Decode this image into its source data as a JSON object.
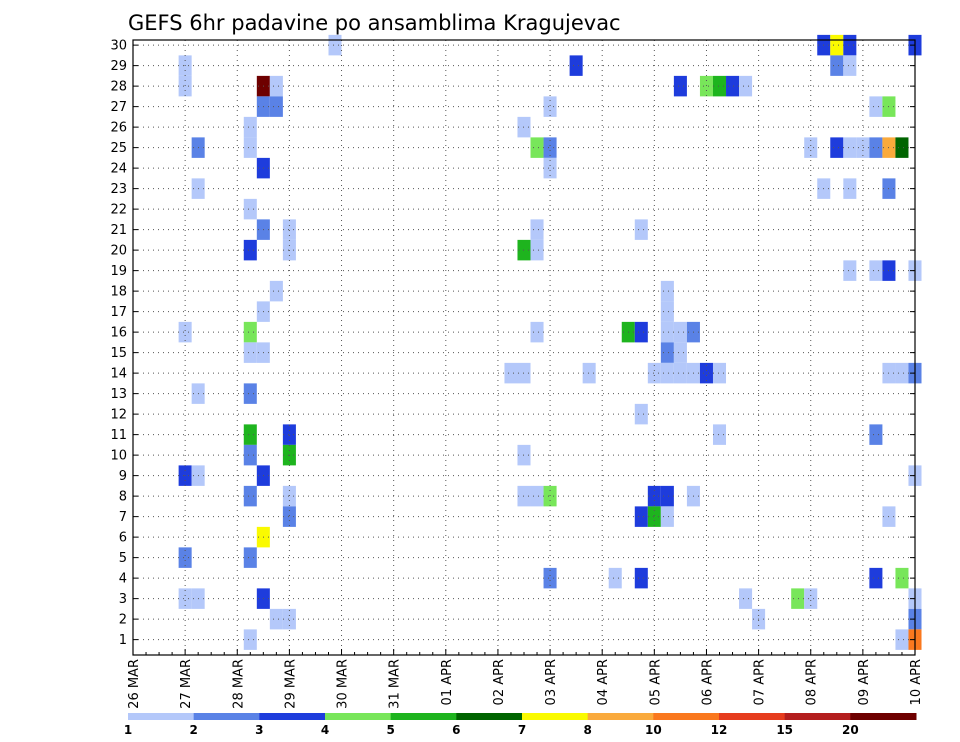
{
  "chart_data": {
    "type": "heatmap",
    "title": "GEFS 6hr padavine po ansamblima Kragujevac",
    "xlabel": "",
    "ylabel": "",
    "x_ticks": [
      "26 MAR",
      "27 MAR",
      "28 MAR",
      "29 MAR",
      "30 MAR",
      "31 MAR",
      "01 APR",
      "02 APR",
      "03 APR",
      "04 APR",
      "05 APR",
      "06 APR",
      "07 APR",
      "08 APR",
      "09 APR",
      "10 APR"
    ],
    "y_ticks": [
      "1",
      "2",
      "3",
      "4",
      "5",
      "6",
      "7",
      "8",
      "9",
      "10",
      "11",
      "12",
      "13",
      "14",
      "15",
      "16",
      "17",
      "18",
      "19",
      "20",
      "21",
      "22",
      "23",
      "24",
      "25",
      "26",
      "27",
      "28",
      "29",
      "30"
    ],
    "x_range_days": [
      0,
      15
    ],
    "y_range": [
      0.25,
      30.25
    ],
    "grid": true,
    "colorbar": {
      "labels": [
        "1",
        "2",
        "3",
        "4",
        "5",
        "6",
        "7",
        "8",
        "10",
        "12",
        "15",
        "20"
      ],
      "colors": [
        "#b4c8fa",
        "#5a82e6",
        "#1e3cdc",
        "#78e65a",
        "#1eb41e",
        "#006400",
        "#fafa00",
        "#faaa3c",
        "#fa781e",
        "#e63c1e",
        "#b41e1e",
        "#6e0000"
      ]
    },
    "cells": [
      [
        3.875,
        30,
        0
      ],
      [
        13.25,
        30,
        2
      ],
      [
        13.5,
        30,
        6
      ],
      [
        13.75,
        30,
        2
      ],
      [
        15.0,
        30,
        2
      ],
      [
        1.0,
        29,
        0
      ],
      [
        8.5,
        29,
        2
      ],
      [
        13.5,
        29,
        1
      ],
      [
        13.75,
        29,
        0
      ],
      [
        1.0,
        28,
        0
      ],
      [
        2.5,
        28,
        11
      ],
      [
        2.75,
        28,
        0
      ],
      [
        10.5,
        28,
        2
      ],
      [
        11.0,
        28,
        3
      ],
      [
        11.25,
        28,
        4
      ],
      [
        11.5,
        28,
        2
      ],
      [
        11.75,
        28,
        0
      ],
      [
        2.5,
        27,
        1
      ],
      [
        2.75,
        27,
        1
      ],
      [
        8.0,
        27,
        0
      ],
      [
        14.25,
        27,
        0
      ],
      [
        14.5,
        27,
        3
      ],
      [
        2.25,
        26,
        0
      ],
      [
        7.5,
        26,
        0
      ],
      [
        1.25,
        25,
        1
      ],
      [
        2.25,
        25,
        0
      ],
      [
        7.75,
        25,
        3
      ],
      [
        8.0,
        25,
        1
      ],
      [
        13.0,
        25,
        0
      ],
      [
        13.5,
        25,
        2
      ],
      [
        13.75,
        25,
        0
      ],
      [
        14.0,
        25,
        0
      ],
      [
        14.25,
        25,
        1
      ],
      [
        14.5,
        25,
        7
      ],
      [
        14.75,
        25,
        5
      ],
      [
        2.5,
        24,
        2
      ],
      [
        8.0,
        24,
        0
      ],
      [
        1.25,
        23,
        0
      ],
      [
        13.25,
        23,
        0
      ],
      [
        13.75,
        23,
        0
      ],
      [
        14.5,
        23,
        1
      ],
      [
        2.25,
        22,
        0
      ],
      [
        2.5,
        21,
        1
      ],
      [
        3.0,
        21,
        0
      ],
      [
        7.75,
        21,
        0
      ],
      [
        9.75,
        21,
        0
      ],
      [
        2.25,
        20,
        2
      ],
      [
        3.0,
        20,
        0
      ],
      [
        7.5,
        20,
        4
      ],
      [
        7.75,
        20,
        0
      ],
      [
        13.75,
        19,
        0
      ],
      [
        14.25,
        19,
        0
      ],
      [
        14.5,
        19,
        2
      ],
      [
        15.0,
        19,
        0
      ],
      [
        2.75,
        18,
        0
      ],
      [
        10.25,
        18,
        0
      ],
      [
        2.5,
        17,
        0
      ],
      [
        10.25,
        17,
        0
      ],
      [
        1.0,
        16,
        0
      ],
      [
        2.25,
        16,
        3
      ],
      [
        7.75,
        16,
        0
      ],
      [
        9.5,
        16,
        4
      ],
      [
        9.75,
        16,
        2
      ],
      [
        10.25,
        16,
        0
      ],
      [
        10.5,
        16,
        0
      ],
      [
        10.75,
        16,
        1
      ],
      [
        2.25,
        15,
        0
      ],
      [
        2.5,
        15,
        0
      ],
      [
        10.25,
        15,
        1
      ],
      [
        10.5,
        15,
        0
      ],
      [
        7.25,
        14,
        0
      ],
      [
        7.5,
        14,
        0
      ],
      [
        8.75,
        14,
        0
      ],
      [
        10.0,
        14,
        0
      ],
      [
        10.25,
        14,
        0
      ],
      [
        10.5,
        14,
        0
      ],
      [
        10.75,
        14,
        0
      ],
      [
        11.0,
        14,
        2
      ],
      [
        11.25,
        14,
        0
      ],
      [
        14.5,
        14,
        0
      ],
      [
        14.75,
        14,
        0
      ],
      [
        15.0,
        14,
        1
      ],
      [
        1.25,
        13,
        0
      ],
      [
        2.25,
        13,
        1
      ],
      [
        9.75,
        12,
        0
      ],
      [
        2.25,
        11,
        4
      ],
      [
        3.0,
        11,
        2
      ],
      [
        11.25,
        11,
        0
      ],
      [
        14.25,
        11,
        1
      ],
      [
        2.25,
        10,
        1
      ],
      [
        3.0,
        10,
        4
      ],
      [
        7.5,
        10,
        0
      ],
      [
        1.0,
        9,
        2
      ],
      [
        1.25,
        9,
        0
      ],
      [
        2.5,
        9,
        2
      ],
      [
        15.0,
        9,
        0
      ],
      [
        2.25,
        8,
        1
      ],
      [
        3.0,
        8,
        0
      ],
      [
        7.5,
        8,
        0
      ],
      [
        7.75,
        8,
        0
      ],
      [
        8.0,
        8,
        3
      ],
      [
        10.0,
        8,
        2
      ],
      [
        10.25,
        8,
        2
      ],
      [
        10.75,
        8,
        0
      ],
      [
        3.0,
        7,
        1
      ],
      [
        9.75,
        7,
        2
      ],
      [
        10.0,
        7,
        4
      ],
      [
        10.25,
        7,
        0
      ],
      [
        14.5,
        7,
        0
      ],
      [
        2.5,
        6,
        6
      ],
      [
        1.0,
        5,
        1
      ],
      [
        2.25,
        5,
        1
      ],
      [
        8.0,
        4,
        1
      ],
      [
        9.25,
        4,
        0
      ],
      [
        9.75,
        4,
        2
      ],
      [
        14.25,
        4,
        2
      ],
      [
        14.75,
        4,
        3
      ],
      [
        1.0,
        3,
        0
      ],
      [
        1.25,
        3,
        0
      ],
      [
        2.5,
        3,
        2
      ],
      [
        11.75,
        3,
        0
      ],
      [
        12.75,
        3,
        3
      ],
      [
        13.0,
        3,
        0
      ],
      [
        15.0,
        3,
        0
      ],
      [
        2.75,
        2,
        0
      ],
      [
        3.0,
        2,
        0
      ],
      [
        12.0,
        2,
        0
      ],
      [
        15.0,
        2,
        1
      ],
      [
        2.25,
        1,
        0
      ],
      [
        14.75,
        1,
        0
      ],
      [
        15.0,
        1,
        8
      ]
    ]
  }
}
